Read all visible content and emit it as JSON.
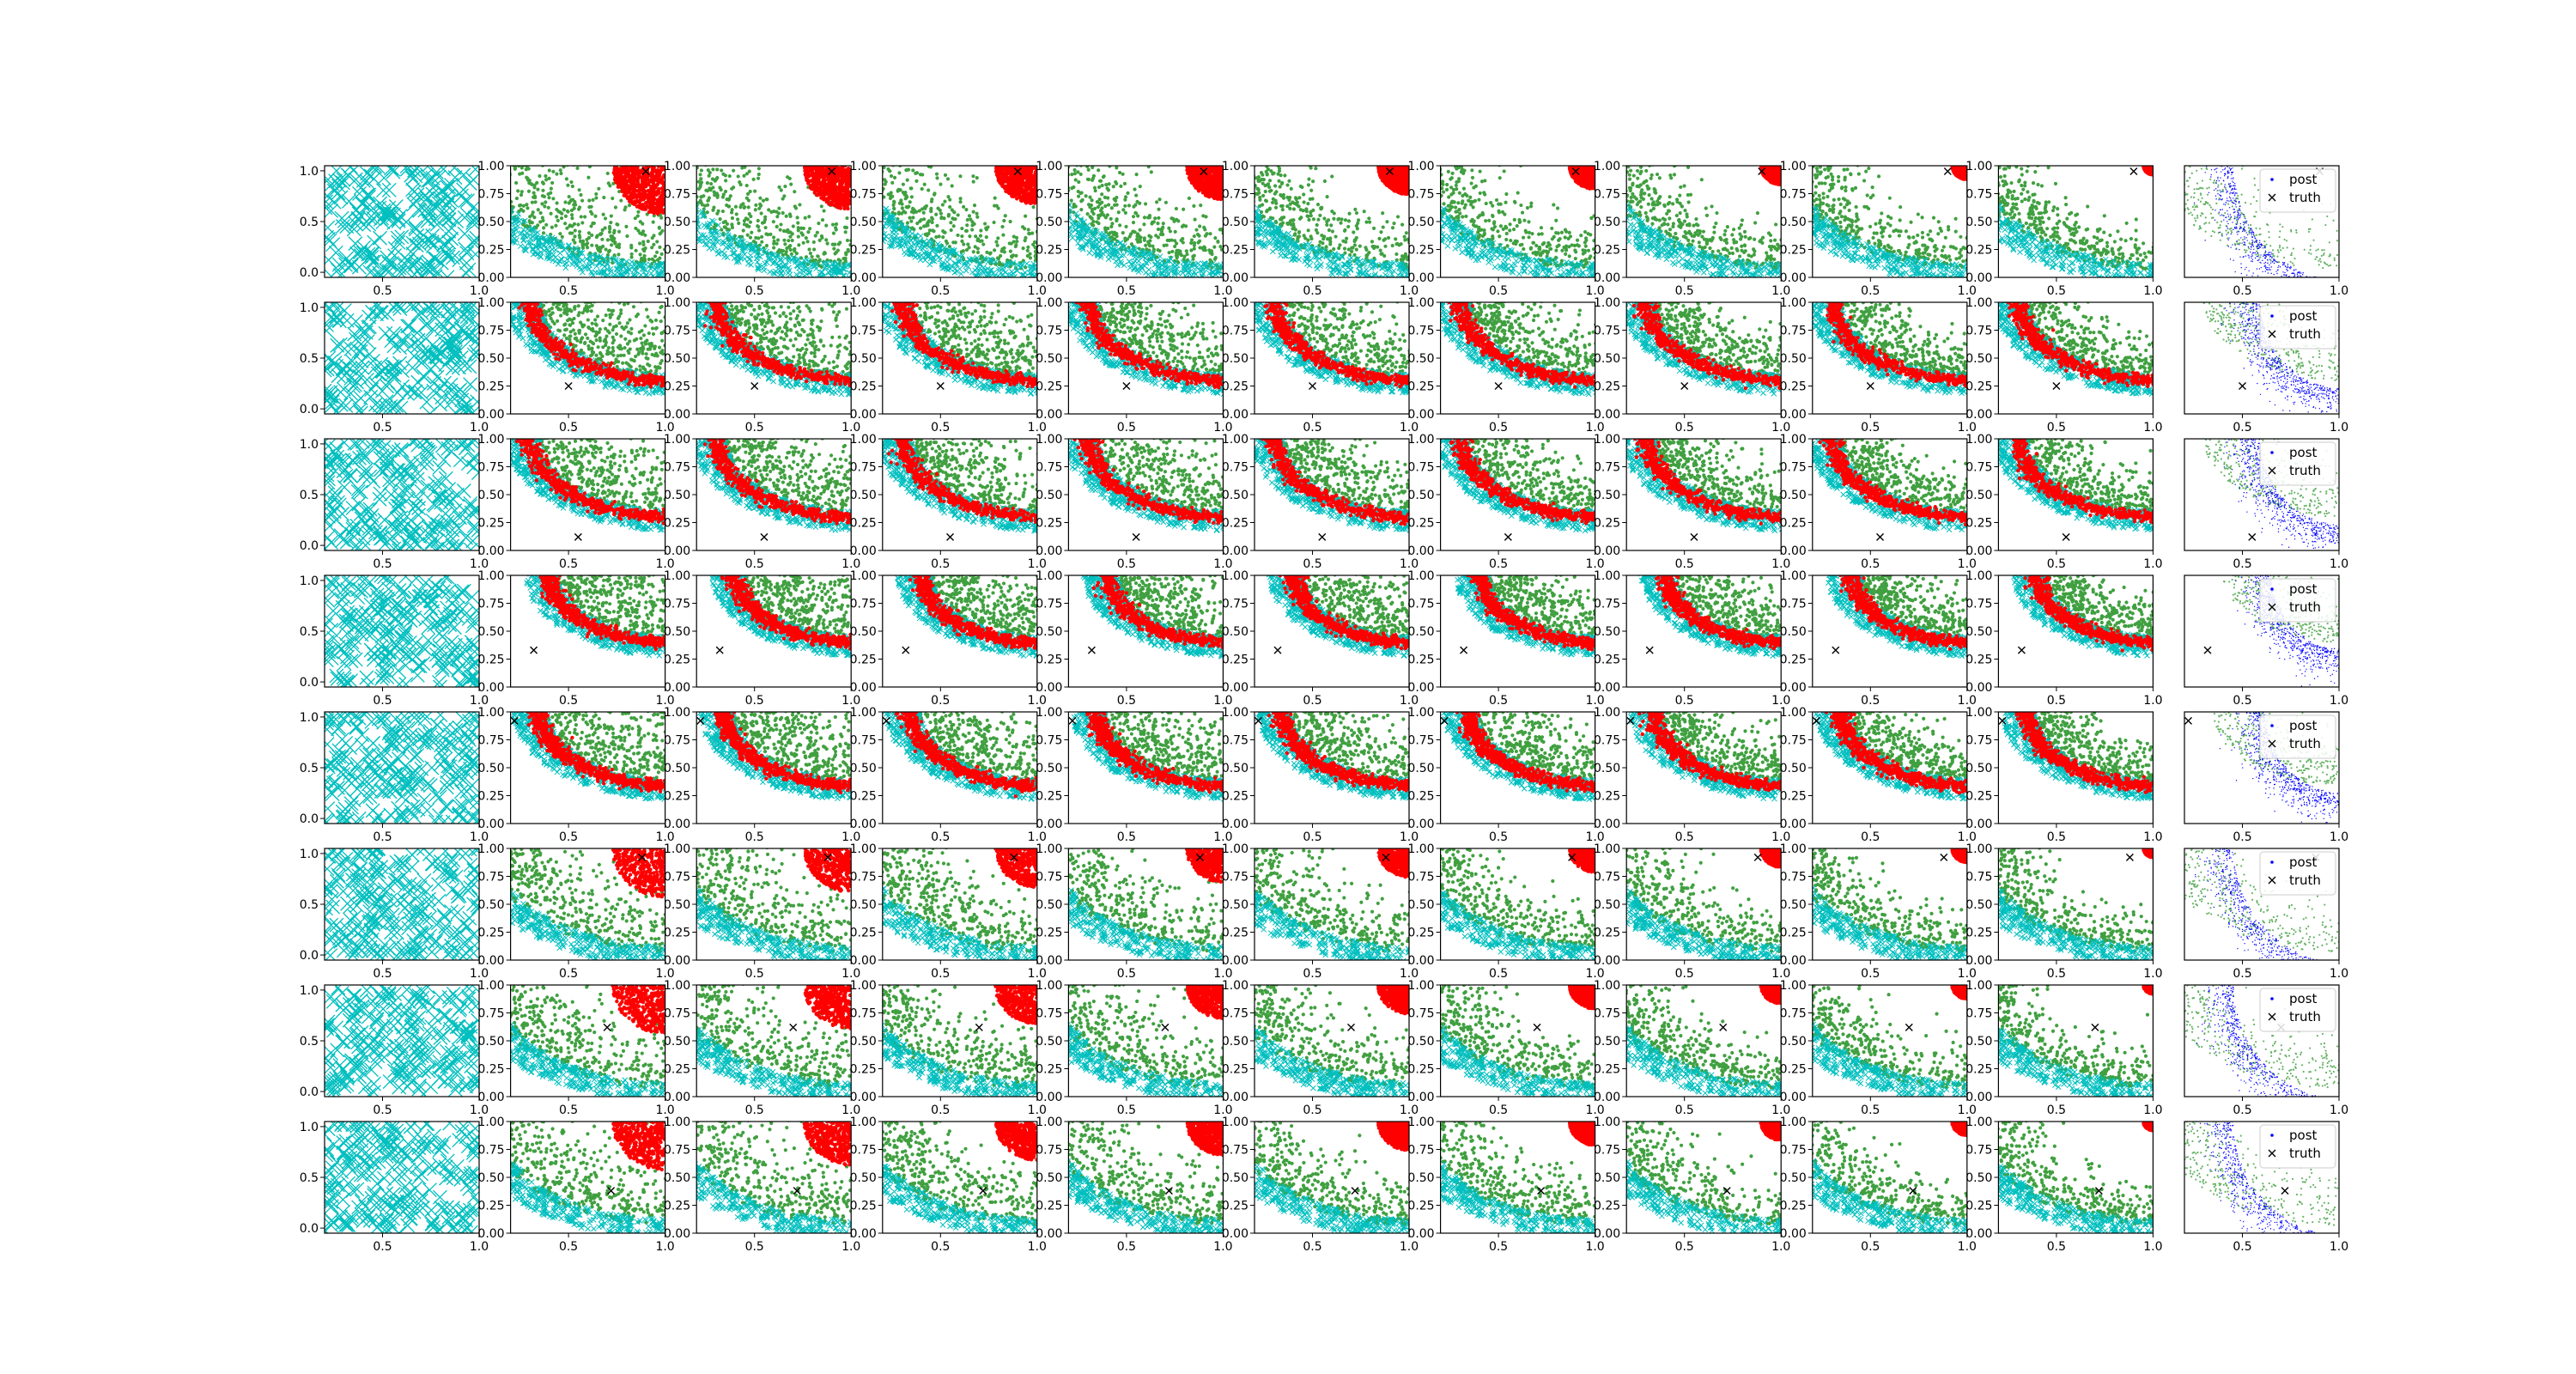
{
  "chart_data": {
    "type": "scatter",
    "layout": {
      "rows": 8,
      "cols": 11
    },
    "colors": {
      "prior": "#00bfbf",
      "samples": "#008000",
      "front": "#ff0000",
      "posterior": "#0000ff",
      "truth": "#000000",
      "axis": "#000000",
      "legend_bg": "#ffffff",
      "legend_edge": "#cccccc"
    },
    "axes": {
      "prior_panel": {
        "xlim": [
          0.2,
          1.0
        ],
        "ylim": [
          -0.05,
          1.05
        ],
        "xticks": [
          "0.5",
          "1.0"
        ],
        "yticks": [
          "0.0",
          "0.5",
          "1.0"
        ]
      },
      "run_panel": {
        "xlim": [
          0.2,
          1.0
        ],
        "ylim": [
          0.0,
          1.0
        ],
        "xticks": [
          "0.5",
          "1.0"
        ],
        "yticks": [
          "0.00",
          "0.25",
          "0.50",
          "0.75",
          "1.00"
        ]
      },
      "post_panel": {
        "xlim": [
          0.2,
          1.0
        ],
        "ylim": [
          0.0,
          1.0
        ],
        "xticks": [
          "0.5",
          "1.0"
        ],
        "yticks": []
      }
    },
    "legend": {
      "placement": "upper right (last column)",
      "entries": [
        {
          "label": "post",
          "marker": "dot",
          "color": "#0000ff"
        },
        {
          "label": "truth",
          "marker": "x",
          "color": "#000000"
        }
      ]
    },
    "rows": [
      {
        "truth": [
          0.9,
          0.95
        ],
        "pattern": "corner",
        "front_strength": 0.9
      },
      {
        "truth": [
          0.5,
          0.25
        ],
        "pattern": "arc",
        "front_strength": 0.85
      },
      {
        "truth": [
          0.55,
          0.12
        ],
        "pattern": "arc",
        "front_strength": 0.85
      },
      {
        "truth": [
          0.32,
          0.33
        ],
        "pattern": "arc-low",
        "front_strength": 0.9
      },
      {
        "truth": [
          0.22,
          0.92
        ],
        "pattern": "arc-strong",
        "front_strength": 1.0
      },
      {
        "truth": [
          0.88,
          0.92
        ],
        "pattern": "corner",
        "front_strength": 0.6
      },
      {
        "truth": [
          0.7,
          0.62
        ],
        "pattern": "corner",
        "front_strength": 0.6
      },
      {
        "truth": [
          0.72,
          0.38
        ],
        "pattern": "corner",
        "front_strength": 0.7
      }
    ]
  }
}
